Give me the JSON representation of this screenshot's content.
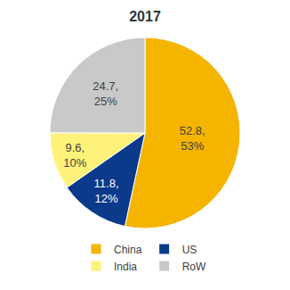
{
  "chart_data": {
    "type": "pie",
    "title": "2017",
    "categories": [
      "China",
      "US",
      "India",
      "RoW"
    ],
    "values": [
      52.8,
      11.8,
      9.6,
      24.7
    ],
    "value_labels": [
      "52.8, 53%",
      "11.8, 12%",
      "9.6, 10%",
      "24.7, 25%"
    ],
    "colors": [
      "#F5B400",
      "#0B3A8A",
      "#FFF27A",
      "#C9C9C9"
    ],
    "data_labels": true,
    "legend": "bottom"
  }
}
